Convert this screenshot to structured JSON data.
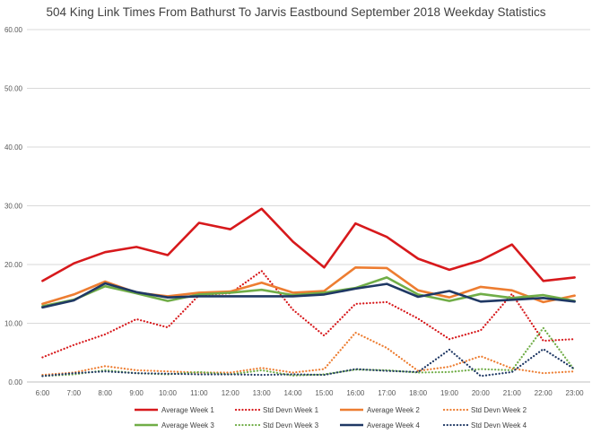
{
  "chart_data": {
    "type": "line",
    "title": "504 King Link Times From Bathurst To Jarvis Eastbound September 2018 Weekday Statistics",
    "xlabel": "",
    "ylabel": "",
    "ylim": [
      0,
      60
    ],
    "y_ticks": [
      "0.00",
      "10.00",
      "20.00",
      "30.00",
      "40.00",
      "50.00",
      "60.00"
    ],
    "grid": "horizontal",
    "legend_position": "bottom",
    "categories": [
      "6:00",
      "7:00",
      "8:00",
      "9:00",
      "10:00",
      "11:00",
      "12:00",
      "13:00",
      "14:00",
      "15:00",
      "16:00",
      "17:00",
      "18:00",
      "19:00",
      "20:00",
      "21:00",
      "22:00",
      "23:00"
    ],
    "series": [
      {
        "name": "Average Week 1",
        "color": "#d7191c",
        "style": "solid",
        "values": [
          17.2,
          20.2,
          22.1,
          23.0,
          21.6,
          27.1,
          26.0,
          29.5,
          23.9,
          19.5,
          27.0,
          24.7,
          21.0,
          19.1,
          20.7,
          23.4,
          17.2,
          17.8
        ]
      },
      {
        "name": "Std Devn Week 1",
        "color": "#d7191c",
        "style": "dotted",
        "values": [
          4.2,
          6.3,
          8.1,
          10.7,
          9.3,
          14.8,
          15.1,
          18.9,
          12.3,
          7.9,
          13.3,
          13.6,
          10.8,
          7.3,
          8.8,
          15.0,
          7.0,
          7.3
        ]
      },
      {
        "name": "Average Week 2",
        "color": "#ed7d31",
        "style": "solid",
        "values": [
          13.3,
          14.9,
          17.1,
          15.2,
          14.6,
          15.2,
          15.4,
          16.9,
          15.2,
          15.5,
          19.5,
          19.4,
          15.6,
          14.4,
          16.2,
          15.6,
          13.6,
          14.7
        ]
      },
      {
        "name": "Std Devn Week 2",
        "color": "#ed7d31",
        "style": "dotted",
        "values": [
          1.2,
          1.6,
          2.7,
          2.0,
          1.8,
          1.6,
          1.6,
          2.4,
          1.6,
          2.2,
          8.4,
          5.8,
          1.9,
          2.6,
          4.4,
          2.3,
          1.5,
          1.8
        ]
      },
      {
        "name": "Average Week 3",
        "color": "#70ad47",
        "style": "solid",
        "values": [
          12.9,
          14.0,
          16.3,
          15.1,
          13.8,
          14.9,
          15.2,
          15.7,
          14.8,
          15.2,
          16.0,
          17.8,
          14.9,
          13.8,
          15.0,
          14.3,
          14.8,
          13.8
        ]
      },
      {
        "name": "Std Devn Week 3",
        "color": "#70ad47",
        "style": "dotted",
        "values": [
          1.0,
          1.3,
          2.0,
          1.5,
          1.3,
          1.7,
          1.3,
          2.0,
          1.1,
          1.3,
          2.1,
          2.0,
          1.6,
          1.7,
          2.2,
          2.0,
          9.2,
          2.0
        ]
      },
      {
        "name": "Average Week 4",
        "color": "#1f3864",
        "style": "solid",
        "values": [
          12.7,
          13.9,
          16.8,
          15.3,
          14.4,
          14.6,
          14.6,
          14.6,
          14.6,
          14.9,
          15.9,
          16.7,
          14.5,
          15.5,
          13.7,
          14.0,
          14.3,
          13.7
        ]
      },
      {
        "name": "Std Devn Week 4",
        "color": "#1f3864",
        "style": "dotted",
        "values": [
          1.0,
          1.5,
          1.8,
          1.5,
          1.4,
          1.3,
          1.3,
          1.2,
          1.3,
          1.2,
          2.2,
          1.9,
          1.7,
          5.5,
          1.0,
          1.7,
          5.6,
          2.2
        ]
      }
    ]
  }
}
